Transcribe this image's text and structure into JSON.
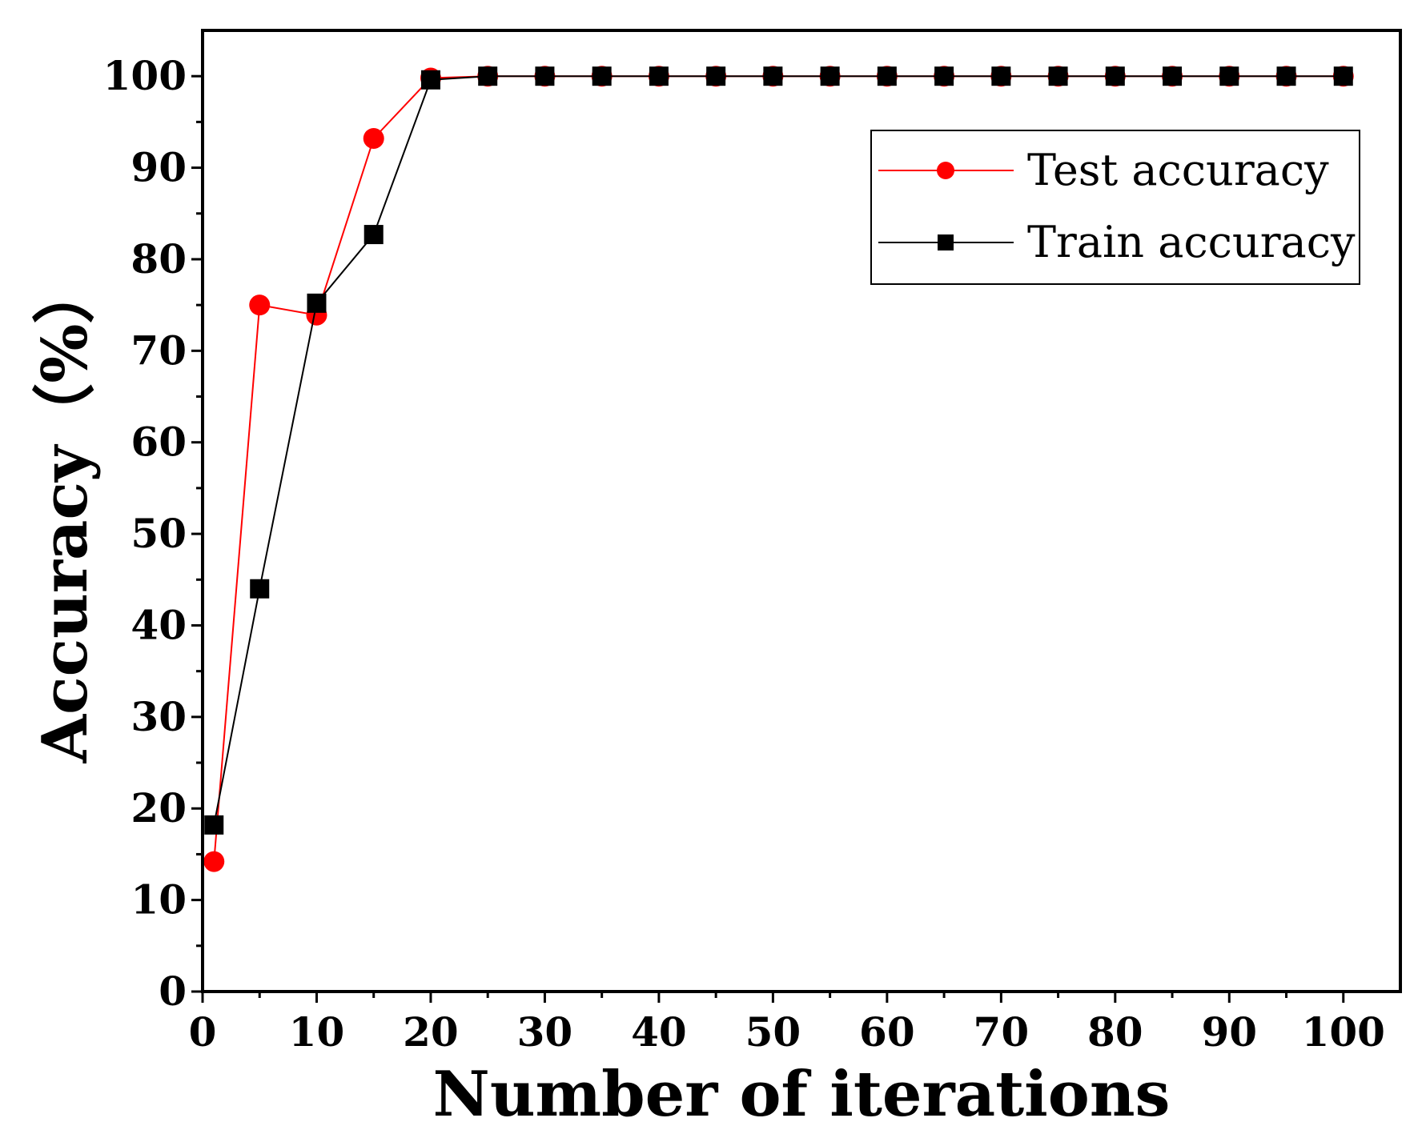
{
  "chart_data": {
    "type": "line",
    "title": "",
    "xlabel": "Number of iterations",
    "ylabel": "Accuracy（%）",
    "xlim": [
      0,
      105
    ],
    "ylim": [
      0,
      105
    ],
    "xticks": [
      0,
      10,
      20,
      30,
      40,
      50,
      60,
      70,
      80,
      90,
      100
    ],
    "yticks": [
      0,
      10,
      20,
      30,
      40,
      50,
      60,
      70,
      80,
      90,
      100
    ],
    "grid": false,
    "legend_position": "top-right",
    "x": [
      1,
      5,
      10,
      15,
      20,
      25,
      30,
      35,
      40,
      45,
      50,
      55,
      60,
      65,
      70,
      75,
      80,
      85,
      90,
      95,
      100
    ],
    "series": [
      {
        "name": "Test accuracy",
        "color": "#ff0000",
        "marker": "circle",
        "values": [
          14.2,
          75.0,
          73.9,
          93.2,
          99.8,
          100,
          100,
          100,
          100,
          100,
          100,
          100,
          100,
          100,
          100,
          100,
          100,
          100,
          100,
          100,
          100
        ]
      },
      {
        "name": "Train accuracy",
        "color": "#000000",
        "marker": "square",
        "values": [
          18.2,
          44.0,
          75.2,
          82.7,
          99.6,
          100,
          100,
          100,
          100,
          100,
          100,
          100,
          100,
          100,
          100,
          100,
          100,
          100,
          100,
          100,
          100
        ]
      }
    ]
  }
}
